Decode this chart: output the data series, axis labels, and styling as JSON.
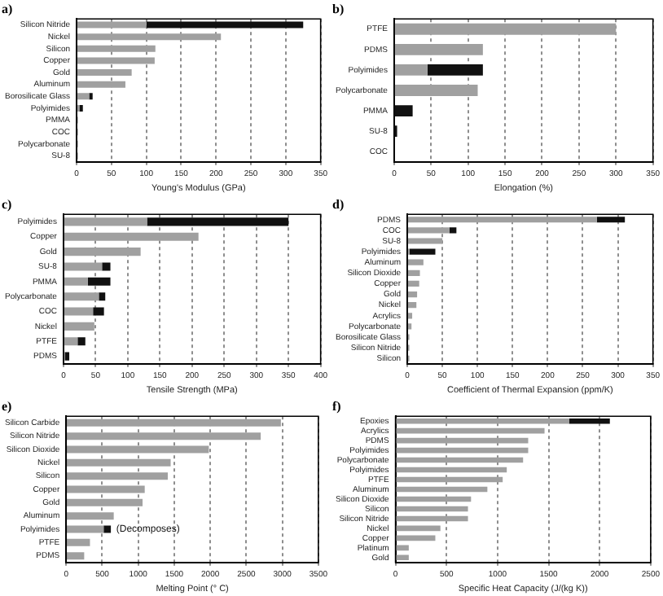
{
  "chart_data": [
    {
      "type": "bar",
      "title": "a)",
      "xlabel": "Young's Modulus (GPa)",
      "orientation": "horizontal",
      "stacked": true,
      "grid": "x",
      "xlim": [
        0,
        350
      ],
      "xticks": [
        0,
        50,
        100,
        150,
        200,
        250,
        300,
        350
      ],
      "categories": [
        "Silicon Nitride",
        "Nickel",
        "Silicon",
        "Copper",
        "Gold",
        "Aluminum",
        "Borosilicate Glass",
        "Polyimides",
        "PMMA",
        "COC",
        "Polycarbonate",
        "SU-8"
      ],
      "series": [
        {
          "color": "#a0a0a0",
          "values": [
            100,
            207,
            113,
            112,
            79,
            70,
            18,
            4,
            2,
            2,
            2,
            2
          ]
        },
        {
          "color": "#111111",
          "values": [
            225,
            null,
            null,
            null,
            null,
            null,
            5,
            5,
            null,
            null,
            null,
            null
          ]
        }
      ]
    },
    {
      "type": "bar",
      "title": "b)",
      "xlabel": "Elongation (%)",
      "orientation": "horizontal",
      "stacked": true,
      "grid": "x",
      "xlim": [
        0,
        350
      ],
      "xticks": [
        0,
        50,
        100,
        150,
        200,
        250,
        300,
        350
      ],
      "categories": [
        "PTFE",
        "PDMS",
        "Polyimides",
        "Polycarbonate",
        "PMMA",
        "SU-8",
        "COC"
      ],
      "series": [
        {
          "color": "#a0a0a0",
          "values": [
            300,
            120,
            45,
            113,
            null,
            null,
            null
          ]
        },
        {
          "color": "#111111",
          "values": [
            null,
            null,
            75,
            null,
            25,
            4,
            1
          ]
        }
      ]
    },
    {
      "type": "bar",
      "title": "c)",
      "xlabel": "Tensile Strength (MPa)",
      "orientation": "horizontal",
      "stacked": true,
      "grid": "x",
      "xlim": [
        0,
        400
      ],
      "xticks": [
        0,
        50,
        100,
        150,
        200,
        250,
        300,
        350,
        400
      ],
      "categories": [
        "Polyimides",
        "Copper",
        "Gold",
        "SU-8",
        "PMMA",
        "Polycarbonate",
        "COC",
        "Nickel",
        "PTFE",
        "PDMS"
      ],
      "series": [
        {
          "color": "#a0a0a0",
          "values": [
            130,
            210,
            120,
            60,
            38,
            55,
            46,
            48,
            22,
            2
          ]
        },
        {
          "color": "#111111",
          "values": [
            220,
            null,
            null,
            13,
            35,
            10,
            17,
            null,
            12,
            7
          ]
        }
      ]
    },
    {
      "type": "bar",
      "title": "d)",
      "xlabel": "Coefficient of Thermal Expansion (ppm/K)",
      "orientation": "horizontal",
      "stacked": true,
      "grid": "x",
      "xlim": [
        0,
        350
      ],
      "xticks": [
        0,
        50,
        100,
        150,
        200,
        250,
        300,
        350
      ],
      "categories": [
        "PDMS",
        "COC",
        "SU-8",
        "Polyimides",
        "Aluminum",
        "Silicon Dioxide",
        "Copper",
        "Gold",
        "Nickel",
        "Acrylics",
        "Polycarbonate",
        "Borosilicate Glass",
        "Silicon Nitride",
        "Silicon"
      ],
      "series": [
        {
          "color": "#a0a0a0",
          "values": [
            270,
            60,
            50,
            3,
            23,
            18,
            17,
            14,
            13,
            7,
            6,
            3,
            3,
            3
          ]
        },
        {
          "color": "#111111",
          "values": [
            40,
            10,
            null,
            37,
            null,
            null,
            null,
            null,
            null,
            null,
            null,
            null,
            null,
            null
          ]
        }
      ]
    },
    {
      "type": "bar",
      "title": "e)",
      "xlabel": "Melting Point (° C)",
      "orientation": "horizontal",
      "stacked": true,
      "grid": "x",
      "xlim": [
        0,
        3500
      ],
      "xticks": [
        0,
        500,
        1000,
        1500,
        2000,
        2500,
        3000,
        3500
      ],
      "categories": [
        "Silicon Carbide",
        "Silicon Nitride",
        "Silicon Dioxide",
        "Nickel",
        "Silicon",
        "Copper",
        "Gold",
        "Aluminum",
        "Polyimides",
        "PTFE",
        "PDMS"
      ],
      "series": [
        {
          "color": "#a0a0a0",
          "values": [
            2980,
            2700,
            1980,
            1450,
            1410,
            1090,
            1060,
            660,
            520,
            330,
            250
          ]
        },
        {
          "color": "#111111",
          "values": [
            null,
            null,
            null,
            null,
            null,
            null,
            null,
            null,
            100,
            null,
            null
          ]
        }
      ],
      "annotations": [
        {
          "text": "(Decomposes)",
          "x": 650,
          "y": "Polyimides"
        }
      ]
    },
    {
      "type": "bar",
      "title": "f)",
      "xlabel": "Specific Heat Capacity (J/(kg K))",
      "orientation": "horizontal",
      "stacked": true,
      "grid": "x",
      "xlim": [
        0,
        2500
      ],
      "xticks": [
        0,
        500,
        1000,
        1500,
        2000,
        2500
      ],
      "categories": [
        "Epoxies",
        "Acrylics",
        "PDMS",
        "Polyimides",
        "Polycarbonate",
        "Polyimides",
        "PTFE",
        "Aluminum",
        "Silicon Dioxide",
        "Silicon",
        "Silicon Nitride",
        "Nickel",
        "Copper",
        "Platinum",
        "Gold"
      ],
      "series": [
        {
          "color": "#a0a0a0",
          "values": [
            1700,
            1460,
            1300,
            1300,
            1250,
            1090,
            1050,
            900,
            740,
            710,
            710,
            440,
            390,
            130,
            130
          ]
        },
        {
          "color": "#111111",
          "values": [
            400,
            null,
            null,
            null,
            null,
            null,
            null,
            null,
            null,
            null,
            null,
            null,
            null,
            null,
            null
          ]
        }
      ]
    }
  ]
}
